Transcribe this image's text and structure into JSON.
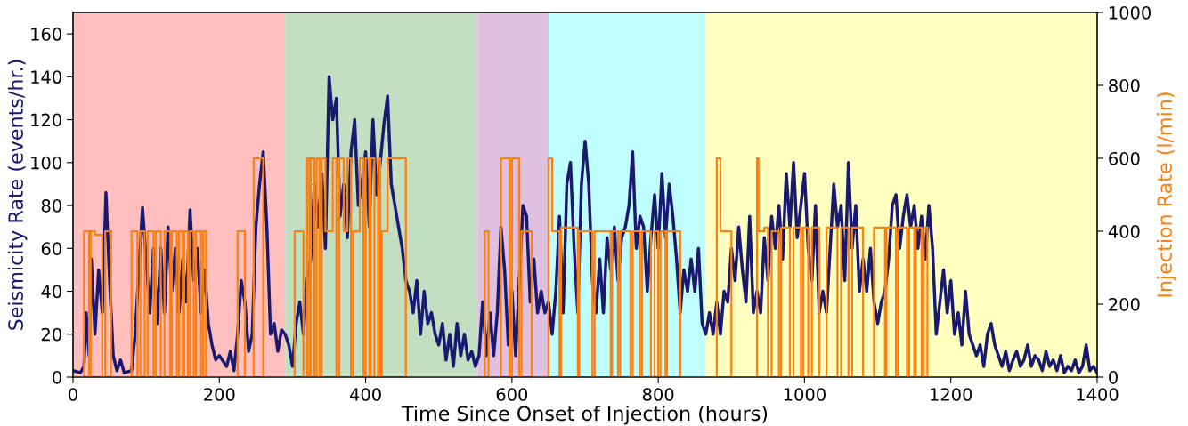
{
  "chart_data": {
    "type": "line",
    "xlabel": "Time Since Onset of Injection (hours)",
    "ylabel": "Seismicity Rate (events/hr.)",
    "y2label": "Injection Rate (l/min)",
    "xlim": [
      0,
      1400
    ],
    "xticks": [
      0,
      200,
      400,
      600,
      800,
      1000,
      1200,
      1400
    ],
    "ylim": [
      0,
      170
    ],
    "yticks": [
      0,
      20,
      40,
      60,
      80,
      100,
      120,
      140,
      160
    ],
    "y2lim": [
      0,
      1000
    ],
    "y2ticks": [
      0,
      200,
      400,
      600,
      800,
      1000
    ],
    "grid": false,
    "legend": false,
    "bands": [
      {
        "axis": "x",
        "from": 0,
        "to": 290,
        "color": "#ffbfbf"
      },
      {
        "axis": "x",
        "from": 290,
        "to": 553,
        "color": "#c2dfc2"
      },
      {
        "axis": "x",
        "from": 553,
        "to": 650,
        "color": "#dfc0df"
      },
      {
        "axis": "x",
        "from": 650,
        "to": 865,
        "color": "#bfffff"
      },
      {
        "axis": "x",
        "from": 865,
        "to": 1400,
        "color": "#ffffc0"
      }
    ],
    "series": [
      {
        "color": "#191970",
        "x": [
          0,
          10,
          15,
          18,
          22,
          25,
          30,
          35,
          40,
          45,
          50,
          55,
          60,
          65,
          70,
          80,
          85,
          90,
          95,
          100,
          105,
          110,
          115,
          120,
          125,
          130,
          135,
          140,
          145,
          150,
          155,
          160,
          165,
          170,
          175,
          180,
          185,
          190,
          195,
          200,
          210,
          215,
          220,
          225,
          230,
          235,
          240,
          245,
          250,
          255,
          260,
          265,
          270,
          275,
          280,
          285,
          290,
          295,
          300,
          305,
          310,
          315,
          320,
          325,
          330,
          335,
          340,
          345,
          350,
          355,
          360,
          365,
          370,
          375,
          380,
          385,
          390,
          395,
          400,
          405,
          410,
          415,
          420,
          425,
          430,
          435,
          440,
          445,
          450,
          455,
          460,
          465,
          470,
          475,
          480,
          485,
          490,
          495,
          500,
          505,
          510,
          515,
          520,
          525,
          530,
          535,
          540,
          545,
          550,
          555,
          560,
          565,
          570,
          575,
          580,
          585,
          590,
          595,
          600,
          605,
          610,
          615,
          620,
          625,
          630,
          635,
          640,
          645,
          650,
          655,
          660,
          665,
          670,
          675,
          680,
          685,
          690,
          695,
          700,
          705,
          710,
          715,
          720,
          725,
          730,
          735,
          740,
          745,
          750,
          755,
          760,
          765,
          770,
          775,
          780,
          785,
          790,
          795,
          800,
          805,
          810,
          815,
          820,
          825,
          830,
          835,
          840,
          845,
          850,
          855,
          860,
          865,
          870,
          875,
          880,
          885,
          890,
          895,
          900,
          905,
          910,
          915,
          920,
          925,
          930,
          935,
          940,
          945,
          950,
          955,
          960,
          965,
          970,
          975,
          980,
          985,
          990,
          995,
          1000,
          1005,
          1010,
          1015,
          1020,
          1025,
          1030,
          1035,
          1040,
          1045,
          1050,
          1055,
          1060,
          1065,
          1070,
          1075,
          1080,
          1085,
          1090,
          1095,
          1100,
          1105,
          1110,
          1115,
          1120,
          1125,
          1130,
          1135,
          1140,
          1145,
          1150,
          1155,
          1160,
          1165,
          1170,
          1175,
          1180,
          1185,
          1190,
          1195,
          1200,
          1205,
          1210,
          1215,
          1220,
          1225,
          1230,
          1235,
          1240,
          1245,
          1250,
          1255,
          1260,
          1265,
          1270,
          1275,
          1280,
          1285,
          1290,
          1295,
          1300,
          1305,
          1310,
          1315,
          1320,
          1325,
          1330,
          1335,
          1340,
          1345,
          1350,
          1355,
          1360,
          1365,
          1370,
          1375,
          1380,
          1385,
          1390,
          1395,
          1400
        ],
        "values": [
          3,
          2,
          5,
          30,
          10,
          55,
          20,
          50,
          30,
          86,
          45,
          10,
          3,
          8,
          2,
          3,
          20,
          50,
          79,
          55,
          30,
          60,
          25,
          60,
          30,
          70,
          40,
          60,
          30,
          55,
          35,
          78,
          45,
          60,
          30,
          50,
          25,
          15,
          8,
          10,
          5,
          12,
          3,
          20,
          45,
          35,
          12,
          20,
          70,
          90,
          105,
          70,
          20,
          25,
          12,
          22,
          20,
          15,
          5,
          25,
          35,
          20,
          45,
          55,
          90,
          70,
          95,
          60,
          140,
          120,
          130,
          75,
          90,
          65,
          105,
          120,
          80,
          90,
          105,
          70,
          120,
          85,
          100,
          118,
          131,
          90,
          80,
          70,
          60,
          45,
          40,
          30,
          45,
          20,
          40,
          25,
          30,
          20,
          15,
          25,
          8,
          20,
          5,
          25,
          10,
          20,
          8,
          12,
          5,
          10,
          35,
          10,
          30,
          10,
          30,
          70,
          50,
          15,
          40,
          10,
          45,
          80,
          75,
          35,
          55,
          30,
          40,
          30,
          35,
          20,
          40,
          75,
          30,
          90,
          100,
          60,
          30,
          90,
          110,
          90,
          45,
          30,
          55,
          30,
          65,
          50,
          70,
          45,
          65,
          70,
          80,
          105,
          60,
          75,
          70,
          40,
          65,
          85,
          60,
          95,
          65,
          90,
          75,
          55,
          30,
          50,
          40,
          55,
          40,
          60,
          25,
          20,
          30,
          20,
          35,
          20,
          40,
          35,
          60,
          45,
          70,
          50,
          35,
          75,
          30,
          40,
          30,
          65,
          45,
          75,
          60,
          80,
          55,
          95,
          70,
          100,
          65,
          80,
          95,
          60,
          45,
          80,
          30,
          40,
          30,
          60,
          90,
          70,
          80,
          45,
          100,
          60,
          80,
          40,
          55,
          40,
          60,
          35,
          25,
          35,
          40,
          55,
          80,
          85,
          60,
          75,
          85,
          70,
          80,
          60,
          75,
          55,
          80,
          60,
          20,
          35,
          50,
          30,
          45,
          20,
          30,
          15,
          40,
          20,
          15,
          10,
          15,
          5,
          20,
          25,
          15,
          10,
          5,
          12,
          3,
          8,
          12,
          5,
          8,
          15,
          5,
          10,
          8,
          3,
          12,
          5,
          8,
          3,
          10,
          2,
          5,
          3,
          8,
          2,
          5,
          15,
          3,
          5,
          2
        ]
      },
      {
        "type": "step",
        "axis": "y2",
        "color": "#ff7f0e",
        "x": [
          0,
          15,
          22,
          24,
          30,
          40,
          44,
          52,
          80,
          88,
          92,
          98,
          102,
          110,
          113,
          120,
          125,
          133,
          135,
          142,
          145,
          150,
          152,
          157,
          160,
          165,
          168,
          175,
          178,
          182,
          225,
          235,
          247,
          260,
          303,
          315,
          320,
          323,
          325,
          330,
          333,
          337,
          340,
          345,
          355,
          360,
          364,
          370,
          375,
          380,
          383,
          392,
          397,
          400,
          405,
          407,
          412,
          417,
          420,
          422,
          430,
          455,
          563,
          568,
          585,
          597,
          600,
          610,
          613,
          627,
          650,
          655,
          665,
          667,
          690,
          692,
          710,
          713,
          735,
          737,
          745,
          748,
          762,
          765,
          775,
          778,
          790,
          795,
          800,
          803,
          810,
          812,
          830,
          880,
          885,
          900,
          935,
          937,
          945,
          950,
          955,
          965,
          968,
          980,
          985,
          995,
          998,
          1005,
          1010,
          1020,
          1030,
          1045,
          1050,
          1060,
          1065,
          1080,
          1095,
          1110,
          1112,
          1125,
          1128,
          1140,
          1143,
          1150,
          1152,
          1160,
          1163,
          1168,
          1400
        ],
        "values": [
          0,
          400,
          0,
          400,
          390,
          0,
          400,
          0,
          400,
          0,
          400,
          0,
          400,
          0,
          400,
          0,
          400,
          0,
          400,
          0,
          400,
          0,
          400,
          0,
          400,
          0,
          400,
          0,
          400,
          0,
          400,
          0,
          600,
          0,
          400,
          0,
          600,
          0,
          600,
          0,
          600,
          0,
          600,
          400,
          600,
          0,
          600,
          400,
          600,
          0,
          400,
          600,
          0,
          600,
          0,
          600,
          0,
          600,
          0,
          400,
          600,
          0,
          400,
          0,
          600,
          0,
          600,
          0,
          400,
          0,
          600,
          400,
          0,
          410,
          0,
          400,
          0,
          400,
          0,
          400,
          0,
          400,
          0,
          400,
          0,
          400,
          0,
          400,
          0,
          400,
          0,
          400,
          0,
          600,
          400,
          0,
          600,
          400,
          410,
          0,
          400,
          0,
          410,
          0,
          410,
          0,
          410,
          0,
          410,
          0,
          410,
          0,
          410,
          0,
          410,
          0,
          410,
          0,
          410,
          0,
          410,
          0,
          410,
          0,
          410,
          0,
          410,
          0,
          0
        ]
      }
    ]
  }
}
